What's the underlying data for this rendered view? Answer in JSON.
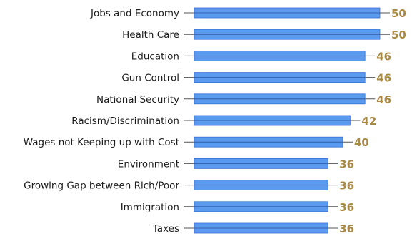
{
  "chart_data": {
    "type": "bar",
    "orientation": "horizontal",
    "categories": [
      "Jobs and Economy",
      "Health Care",
      "Education",
      "Gun Control",
      "National Security",
      "Racism/Discrimination",
      "Wages not Keeping up with Cost",
      "Environment",
      "Growing Gap between Rich/Poor",
      "Immigration",
      "Taxes"
    ],
    "values": [
      50,
      50,
      46,
      46,
      46,
      42,
      40,
      36,
      36,
      36,
      36
    ],
    "title": "",
    "xlabel": "",
    "ylabel": "",
    "xlim": [
      0,
      50
    ],
    "grid": false,
    "legend": "none",
    "colors": {
      "bar_fill": "#5b9bef",
      "bar_edge": "#3a6ed6",
      "bar_midline": "#2b4f9a",
      "value_label": "#a88a45",
      "leader_line": "#555555",
      "category_text": "#1a1a1a"
    }
  }
}
